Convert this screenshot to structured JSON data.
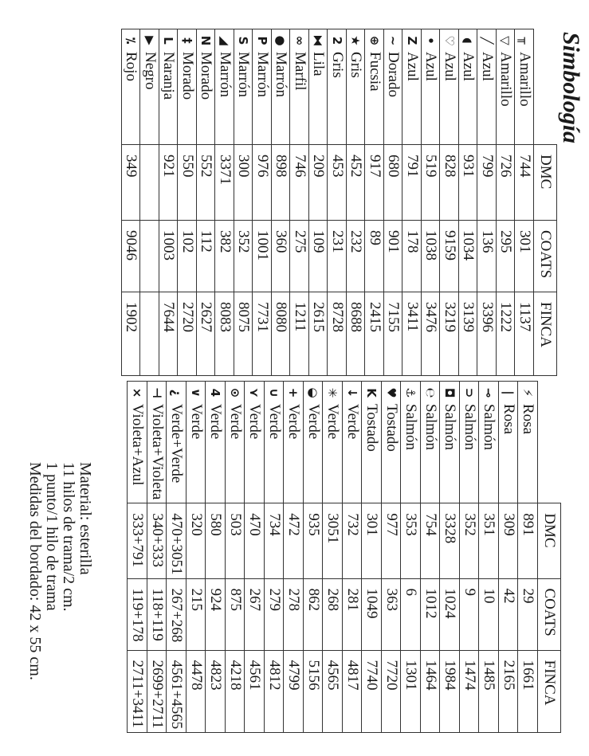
{
  "title": "Simbología",
  "headers": [
    "DMC",
    "COATS",
    "FINCA"
  ],
  "table_left": [
    {
      "icon": "pi-icon",
      "sym": "╥",
      "name": "Amarillo",
      "dmc": "744",
      "coats": "301",
      "finca": "1137"
    },
    {
      "icon": "triangle-down-icon",
      "sym": "▽",
      "name": "Amarillo",
      "dmc": "726",
      "coats": "295",
      "finca": "1222"
    },
    {
      "icon": "slash-icon",
      "sym": "╱",
      "name": "Azul",
      "dmc": "799",
      "coats": "136",
      "finca": "3396"
    },
    {
      "icon": "half-circle-icon",
      "sym": "◖",
      "name": "Azul",
      "dmc": "931",
      "coats": "1034",
      "finca": "3139"
    },
    {
      "icon": "heart-outline-icon",
      "sym": "♡",
      "name": "Azul",
      "dmc": "828",
      "coats": "9159",
      "finca": "3219"
    },
    {
      "icon": "dot-icon",
      "sym": "•",
      "name": "Azul",
      "dmc": "519",
      "coats": "1038",
      "finca": "3476"
    },
    {
      "icon": "z-icon",
      "sym": "Z",
      "name": "Azul",
      "dmc": "791",
      "coats": "178",
      "finca": "3411"
    },
    {
      "icon": "tilde-icon",
      "sym": "~",
      "name": "Dorado",
      "dmc": "680",
      "coats": "901",
      "finca": "7155"
    },
    {
      "icon": "crosshair-icon",
      "sym": "⊕",
      "name": "Fucsia",
      "dmc": "917",
      "coats": "89",
      "finca": "2415"
    },
    {
      "icon": "star-icon",
      "sym": "★",
      "name": "Gris",
      "dmc": "452",
      "coats": "232",
      "finca": "8688"
    },
    {
      "icon": "two-icon",
      "sym": "2",
      "name": "Gris",
      "dmc": "453",
      "coats": "231",
      "finca": "8728"
    },
    {
      "icon": "bowtie-icon",
      "sym": "⧓",
      "name": "Lila",
      "dmc": "209",
      "coats": "109",
      "finca": "2615"
    },
    {
      "icon": "infinity-icon",
      "sym": "∞",
      "name": "Marfil",
      "dmc": "746",
      "coats": "275",
      "finca": "1211"
    },
    {
      "icon": "filled-circle-icon",
      "sym": "●",
      "name": "Marrón",
      "dmc": "898",
      "coats": "360",
      "finca": "8080"
    },
    {
      "icon": "p-icon",
      "sym": "P",
      "name": "Marrón",
      "dmc": "976",
      "coats": "1001",
      "finca": "7731"
    },
    {
      "icon": "s-icon",
      "sym": "S",
      "name": "Marrón",
      "dmc": "300",
      "coats": "352",
      "finca": "8075"
    },
    {
      "icon": "corner-triangle-icon",
      "sym": "◢",
      "name": "Marrón",
      "dmc": "3371",
      "coats": "382",
      "finca": "8083"
    },
    {
      "icon": "n-icon",
      "sym": "N",
      "name": "Morado",
      "dmc": "552",
      "coats": "112",
      "finca": "2627"
    },
    {
      "icon": "double-dagger-icon",
      "sym": "‡",
      "name": "Morado",
      "dmc": "550",
      "coats": "102",
      "finca": "2720"
    },
    {
      "icon": "l-icon",
      "sym": "L",
      "name": "Naranja",
      "dmc": "921",
      "coats": "1003",
      "finca": "7644"
    },
    {
      "icon": "triangle-right-icon",
      "sym": "▶",
      "name": "Negro",
      "dmc": "",
      "coats": "",
      "finca": ""
    },
    {
      "icon": "percent-icon",
      "sym": "⁒",
      "name": "Rojo",
      "dmc": "349",
      "coats": "9046",
      "finca": "1902"
    }
  ],
  "table_right": [
    {
      "icon": "lightning-icon",
      "sym": "⚡",
      "name": "Rosa",
      "dmc": "891",
      "coats": "29",
      "finca": "1661"
    },
    {
      "icon": "bar-icon",
      "sym": "|",
      "name": "Rosa",
      "dmc": "309",
      "coats": "42",
      "finca": "2165"
    },
    {
      "icon": "pin-icon",
      "sym": "⊸",
      "name": "Salmón",
      "dmc": "351",
      "coats": "10",
      "finca": "1485"
    },
    {
      "icon": "superset-icon",
      "sym": "⊃",
      "name": "Salmón",
      "dmc": "352",
      "coats": "9",
      "finca": "1474"
    },
    {
      "icon": "flag-icon",
      "sym": "◘",
      "name": "Salmón",
      "dmc": "3328",
      "coats": "1024",
      "finca": "1984"
    },
    {
      "icon": "e-curl-icon",
      "sym": "℮",
      "name": "Salmón",
      "dmc": "754",
      "coats": "1012",
      "finca": "1464"
    },
    {
      "icon": "anchor-icon",
      "sym": "⚓",
      "name": "Salmón",
      "dmc": "353",
      "coats": "6",
      "finca": "1301"
    },
    {
      "icon": "heart-icon",
      "sym": "♥",
      "name": "Tostado",
      "dmc": "977",
      "coats": "363",
      "finca": "7720"
    },
    {
      "icon": "k-icon",
      "sym": "K",
      "name": "Tostado",
      "dmc": "301",
      "coats": "1049",
      "finca": "7740"
    },
    {
      "icon": "arrow-icon",
      "sym": "↓",
      "name": "Verde",
      "dmc": "732",
      "coats": "281",
      "finca": "4817"
    },
    {
      "icon": "asterisk-icon",
      "sym": "✳",
      "name": "Verde",
      "dmc": "3051",
      "coats": "268",
      "finca": "4565"
    },
    {
      "icon": "half-filled-circle-icon",
      "sym": "◒",
      "name": "Verde",
      "dmc": "935",
      "coats": "862",
      "finca": "5156"
    },
    {
      "icon": "plus-icon",
      "sym": "+",
      "name": "Verde",
      "dmc": "472",
      "coats": "278",
      "finca": "4799"
    },
    {
      "icon": "cup-icon",
      "sym": "∪",
      "name": "Verde",
      "dmc": "734",
      "coats": "279",
      "finca": "4812"
    },
    {
      "icon": "y-icon",
      "sym": "⋎",
      "name": "Verde",
      "dmc": "470",
      "coats": "267",
      "finca": "4561"
    },
    {
      "icon": "target-icon",
      "sym": "⊙",
      "name": "Verde",
      "dmc": "503",
      "coats": "875",
      "finca": "4218"
    },
    {
      "icon": "four-icon",
      "sym": "4",
      "name": "Verde",
      "dmc": "580",
      "coats": "924",
      "finca": "4823"
    },
    {
      "icon": "less-than-icon",
      "sym": "∨",
      "name": "Verde",
      "dmc": "320",
      "coats": "215",
      "finca": "4478"
    },
    {
      "icon": "question-icon",
      "sym": "¿",
      "name": "Verde+Verde",
      "dmc": "470+3051",
      "coats": "267+268",
      "finca": "4561+4565"
    },
    {
      "icon": "tee-icon",
      "sym": "⊣",
      "name": "Violeta+Violeta",
      "dmc": "340+333",
      "coats": "118+119",
      "finca": "2699+2711"
    },
    {
      "icon": "cross-icon",
      "sym": "×",
      "name": "Violeta+Azul",
      "dmc": "333+791",
      "coats": "119+178",
      "finca": "2711+3411"
    }
  ],
  "footer": [
    "Material: esterilla",
    "11 hilos de trama/2 cm.",
    "1 punto/1 hilo de trama",
    "Medidas del bordado: 42 x 55 cm."
  ]
}
